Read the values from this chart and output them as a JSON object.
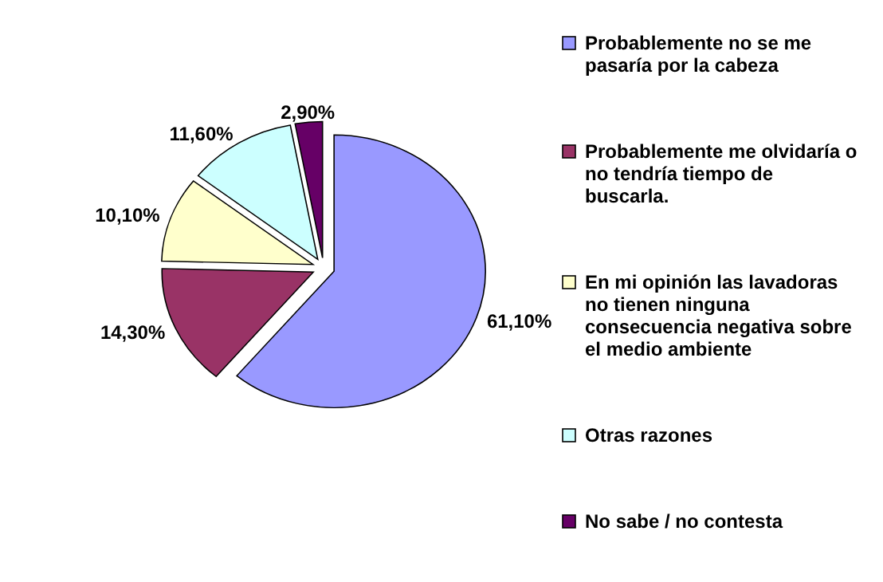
{
  "chart_data": {
    "type": "pie",
    "categories": [
      "Probablemente no se me pasaría por la cabeza",
      "Probablemente me olvidaría o no tendría tiempo de buscarla.",
      "En mi opinión las lavadoras no tienen ninguna consecuencia negativa sobre el medio ambiente",
      "Otras razones",
      "No sabe / no contesta"
    ],
    "values": [
      61.1,
      14.3,
      10.1,
      11.6,
      2.9
    ],
    "colors": [
      "#9999ff",
      "#993366",
      "#ffffcc",
      "#ccffff",
      "#660066"
    ],
    "value_labels": [
      "61,10%",
      "14,30%",
      "10,10%",
      "11,60%",
      "2,90%"
    ],
    "legend": "right"
  }
}
